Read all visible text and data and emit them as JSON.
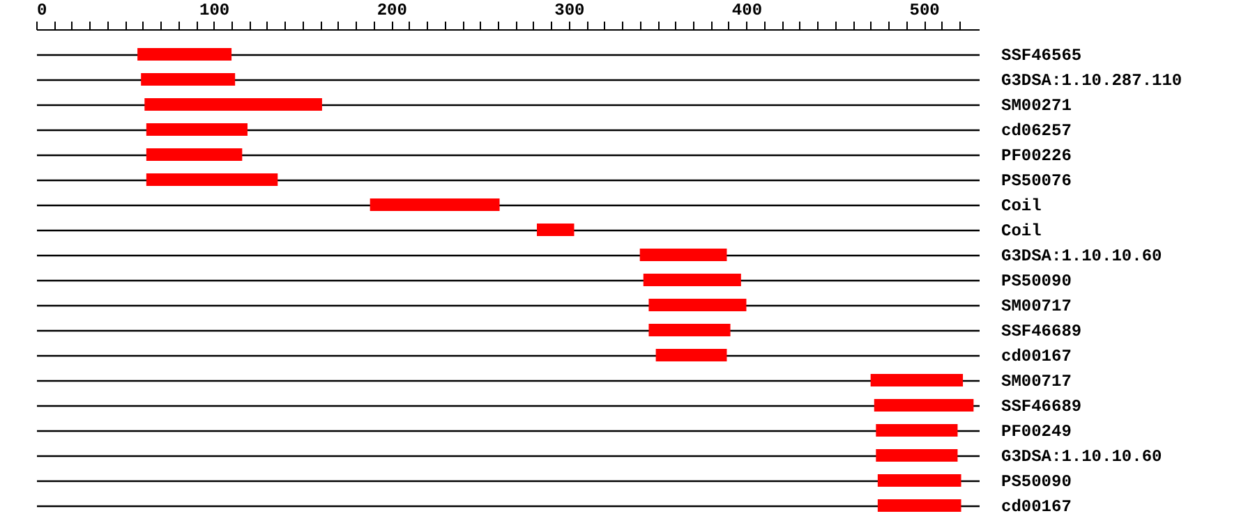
{
  "chart_data": {
    "type": "bar",
    "orientation": "horizontal",
    "categories": [
      "SSF46565",
      "G3DSA:1.10.287.110",
      "SM00271",
      "cd06257",
      "PF00226",
      "PS50076",
      "Coil",
      "Coil",
      "G3DSA:1.10.10.60",
      "PS50090",
      "SM00717",
      "SSF46689",
      "cd00167",
      "SM00717",
      "SSF46689",
      "PF00249",
      "G3DSA:1.10.10.60",
      "PS50090",
      "cd00167"
    ],
    "base": [
      57,
      59,
      61,
      62,
      62,
      62,
      188,
      282,
      340,
      342,
      345,
      345,
      349,
      470,
      472,
      473,
      473,
      474,
      474
    ],
    "values": [
      53,
      53,
      100,
      57,
      54,
      74,
      73,
      21,
      49,
      55,
      55,
      46,
      40,
      52,
      56,
      46,
      46,
      47,
      47
    ],
    "color": "#ff0000",
    "xlim": [
      0,
      531
    ],
    "xticks": [
      0,
      {
        "value": 10,
        "label": null
      },
      {
        "value": 20,
        "label": null
      },
      {
        "value": 30,
        "label": null
      },
      {
        "value": 40,
        "label": null
      },
      {
        "value": 50,
        "label": null
      },
      {
        "value": 60,
        "label": null
      },
      {
        "value": 70,
        "label": null
      },
      {
        "value": 80,
        "label": null
      },
      {
        "value": 90,
        "label": null
      },
      100,
      {
        "value": 110,
        "label": null
      },
      {
        "value": 120,
        "label": null
      },
      {
        "value": 130,
        "label": null
      },
      {
        "value": 140,
        "label": null
      },
      {
        "value": 150,
        "label": null
      },
      {
        "value": 160,
        "label": null
      },
      {
        "value": 170,
        "label": null
      },
      {
        "value": 180,
        "label": null
      },
      {
        "value": 190,
        "label": null
      },
      200,
      {
        "value": 210,
        "label": null
      },
      {
        "value": 220,
        "label": null
      },
      {
        "value": 230,
        "label": null
      },
      {
        "value": 240,
        "label": null
      },
      {
        "value": 250,
        "label": null
      },
      {
        "value": 260,
        "label": null
      },
      {
        "value": 270,
        "label": null
      },
      {
        "value": 280,
        "label": null
      },
      {
        "value": 290,
        "label": null
      },
      300,
      {
        "value": 310,
        "label": null
      },
      {
        "value": 320,
        "label": null
      },
      {
        "value": 330,
        "label": null
      },
      {
        "value": 340,
        "label": null
      },
      {
        "value": 350,
        "label": null
      },
      {
        "value": 360,
        "label": null
      },
      {
        "value": 370,
        "label": null
      },
      {
        "value": 380,
        "label": null
      },
      {
        "value": 390,
        "label": null
      },
      400,
      {
        "value": 410,
        "label": null
      },
      {
        "value": 420,
        "label": null
      },
      {
        "value": 430,
        "label": null
      },
      {
        "value": 440,
        "label": null
      },
      {
        "value": 450,
        "label": null
      },
      {
        "value": 460,
        "label": null
      },
      {
        "value": 470,
        "label": null
      },
      {
        "value": 480,
        "label": null
      },
      {
        "value": 490,
        "label": null
      },
      500,
      {
        "value": 510,
        "label": null
      },
      {
        "value": 520,
        "label": null
      }
    ],
    "grid": "y"
  }
}
